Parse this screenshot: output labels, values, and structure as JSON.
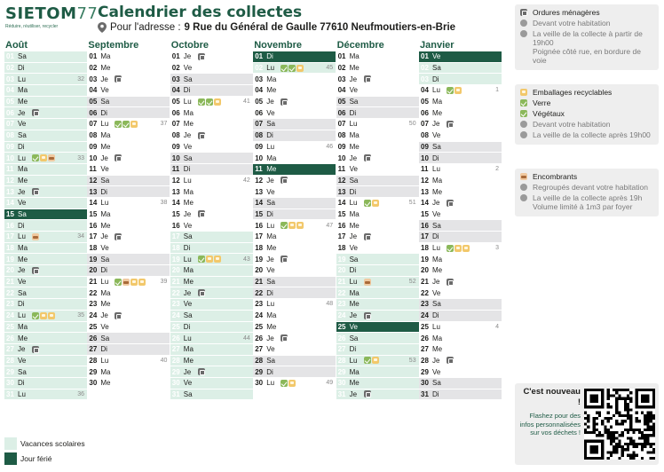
{
  "logo": {
    "main": "SIET",
    "o": "O",
    "m": "M",
    "num": "77",
    "tagline": "Réduire, réutiliser, recycler"
  },
  "header": {
    "title": "Calendrier des collectes",
    "address_prefix": "Pour l'adresse : ",
    "address": "9 Rue du Général de Gaulle 77610 Neufmoutiers-en-Brie"
  },
  "colors": {
    "brand": "#1e5b45",
    "vacation": "#dcefe6",
    "weekend": "#e4e4e6",
    "grey_bin": "#6b6b6b",
    "yellow_bin": "#f2c86b",
    "green_bin": "#8bb85a",
    "brown_bin": "#f0c9a0"
  },
  "months": [
    {
      "name": "Août",
      "days": [
        {
          "n": "01",
          "d": "Sa",
          "t": "vac"
        },
        {
          "n": "02",
          "d": "Di",
          "t": "vac"
        },
        {
          "n": "03",
          "d": "Lu",
          "t": "vac",
          "w": "32"
        },
        {
          "n": "04",
          "d": "Ma",
          "t": "vac"
        },
        {
          "n": "05",
          "d": "Me",
          "t": "vac"
        },
        {
          "n": "06",
          "d": "Je",
          "t": "vac",
          "ic": [
            "grey"
          ]
        },
        {
          "n": "07",
          "d": "Ve",
          "t": "vac"
        },
        {
          "n": "08",
          "d": "Sa",
          "t": "vac"
        },
        {
          "n": "09",
          "d": "Di",
          "t": "vac"
        },
        {
          "n": "10",
          "d": "Lu",
          "t": "vac",
          "ic": [
            "green",
            "yellow",
            "brown"
          ],
          "w": "33"
        },
        {
          "n": "11",
          "d": "Ma",
          "t": "vac"
        },
        {
          "n": "12",
          "d": "Me",
          "t": "vac"
        },
        {
          "n": "13",
          "d": "Je",
          "t": "vac",
          "ic": [
            "grey"
          ]
        },
        {
          "n": "14",
          "d": "Ve",
          "t": "vac"
        },
        {
          "n": "15",
          "d": "Sa",
          "t": "hol"
        },
        {
          "n": "16",
          "d": "Di",
          "t": "vac"
        },
        {
          "n": "17",
          "d": "Lu",
          "t": "vac",
          "ic": [
            "brown"
          ],
          "w": "34"
        },
        {
          "n": "18",
          "d": "Ma",
          "t": "vac"
        },
        {
          "n": "19",
          "d": "Me",
          "t": "vac"
        },
        {
          "n": "20",
          "d": "Je",
          "t": "vac",
          "ic": [
            "grey"
          ]
        },
        {
          "n": "21",
          "d": "Ve",
          "t": "vac"
        },
        {
          "n": "22",
          "d": "Sa",
          "t": "vac"
        },
        {
          "n": "23",
          "d": "Di",
          "t": "vac"
        },
        {
          "n": "24",
          "d": "Lu",
          "t": "vac",
          "ic": [
            "green",
            "yellow",
            "yellow"
          ],
          "w": "35"
        },
        {
          "n": "25",
          "d": "Ma",
          "t": "vac"
        },
        {
          "n": "26",
          "d": "Me",
          "t": "vac"
        },
        {
          "n": "27",
          "d": "Je",
          "t": "vac",
          "ic": [
            "grey"
          ]
        },
        {
          "n": "28",
          "d": "Ve",
          "t": "vac"
        },
        {
          "n": "29",
          "d": "Sa",
          "t": "vac"
        },
        {
          "n": "30",
          "d": "Di",
          "t": "vac"
        },
        {
          "n": "31",
          "d": "Lu",
          "t": "vac",
          "w": "36"
        }
      ]
    },
    {
      "name": "Septembre",
      "days": [
        {
          "n": "01",
          "d": "Ma"
        },
        {
          "n": "02",
          "d": "Me"
        },
        {
          "n": "03",
          "d": "Je",
          "ic": [
            "grey"
          ]
        },
        {
          "n": "04",
          "d": "Ve"
        },
        {
          "n": "05",
          "d": "Sa",
          "t": "we"
        },
        {
          "n": "06",
          "d": "Di",
          "t": "we"
        },
        {
          "n": "07",
          "d": "Lu",
          "ic": [
            "green",
            "green",
            "yellow"
          ],
          "w": "37"
        },
        {
          "n": "08",
          "d": "Ma"
        },
        {
          "n": "09",
          "d": "Me"
        },
        {
          "n": "10",
          "d": "Je",
          "ic": [
            "grey"
          ]
        },
        {
          "n": "11",
          "d": "Ve"
        },
        {
          "n": "12",
          "d": "Sa",
          "t": "we"
        },
        {
          "n": "13",
          "d": "Di",
          "t": "we"
        },
        {
          "n": "14",
          "d": "Lu",
          "w": "38"
        },
        {
          "n": "15",
          "d": "Ma"
        },
        {
          "n": "16",
          "d": "Me"
        },
        {
          "n": "17",
          "d": "Je",
          "ic": [
            "grey"
          ]
        },
        {
          "n": "18",
          "d": "Ve"
        },
        {
          "n": "19",
          "d": "Sa",
          "t": "we"
        },
        {
          "n": "20",
          "d": "Di",
          "t": "we"
        },
        {
          "n": "21",
          "d": "Lu",
          "ic": [
            "green",
            "brown",
            "yellow",
            "yellow"
          ],
          "w": "39"
        },
        {
          "n": "22",
          "d": "Ma"
        },
        {
          "n": "23",
          "d": "Me"
        },
        {
          "n": "24",
          "d": "Je",
          "ic": [
            "grey"
          ]
        },
        {
          "n": "25",
          "d": "Ve"
        },
        {
          "n": "26",
          "d": "Sa",
          "t": "we"
        },
        {
          "n": "27",
          "d": "Di",
          "t": "we"
        },
        {
          "n": "28",
          "d": "Lu",
          "w": "40"
        },
        {
          "n": "29",
          "d": "Ma"
        },
        {
          "n": "30",
          "d": "Me"
        }
      ]
    },
    {
      "name": "Octobre",
      "days": [
        {
          "n": "01",
          "d": "Je",
          "ic": [
            "grey"
          ]
        },
        {
          "n": "02",
          "d": "Ve"
        },
        {
          "n": "03",
          "d": "Sa",
          "t": "we"
        },
        {
          "n": "04",
          "d": "Di",
          "t": "we"
        },
        {
          "n": "05",
          "d": "Lu",
          "ic": [
            "green",
            "green",
            "yellow"
          ],
          "w": "41"
        },
        {
          "n": "06",
          "d": "Ma"
        },
        {
          "n": "07",
          "d": "Me"
        },
        {
          "n": "08",
          "d": "Je",
          "ic": [
            "grey"
          ]
        },
        {
          "n": "09",
          "d": "Ve"
        },
        {
          "n": "10",
          "d": "Sa",
          "t": "we"
        },
        {
          "n": "11",
          "d": "Di",
          "t": "we"
        },
        {
          "n": "12",
          "d": "Lu",
          "w": "42"
        },
        {
          "n": "13",
          "d": "Ma"
        },
        {
          "n": "14",
          "d": "Me"
        },
        {
          "n": "15",
          "d": "Je",
          "ic": [
            "grey"
          ]
        },
        {
          "n": "16",
          "d": "Ve"
        },
        {
          "n": "17",
          "d": "Sa",
          "t": "vac"
        },
        {
          "n": "18",
          "d": "Di",
          "t": "vac"
        },
        {
          "n": "19",
          "d": "Lu",
          "t": "vac",
          "ic": [
            "green",
            "yellow",
            "yellow"
          ],
          "w": "43"
        },
        {
          "n": "20",
          "d": "Ma",
          "t": "vac"
        },
        {
          "n": "21",
          "d": "Me",
          "t": "vac"
        },
        {
          "n": "22",
          "d": "Je",
          "t": "vac",
          "ic": [
            "grey"
          ]
        },
        {
          "n": "23",
          "d": "Ve",
          "t": "vac"
        },
        {
          "n": "24",
          "d": "Sa",
          "t": "vac"
        },
        {
          "n": "25",
          "d": "Di",
          "t": "vac"
        },
        {
          "n": "26",
          "d": "Lu",
          "t": "vac",
          "w": "44"
        },
        {
          "n": "27",
          "d": "Ma",
          "t": "vac"
        },
        {
          "n": "28",
          "d": "Me",
          "t": "vac"
        },
        {
          "n": "29",
          "d": "Je",
          "t": "vac",
          "ic": [
            "grey"
          ]
        },
        {
          "n": "30",
          "d": "Ve",
          "t": "vac"
        },
        {
          "n": "31",
          "d": "Sa",
          "t": "vac"
        }
      ]
    },
    {
      "name": "Novembre",
      "days": [
        {
          "n": "01",
          "d": "Di",
          "t": "hol"
        },
        {
          "n": "02",
          "d": "Lu",
          "t": "vac",
          "ic": [
            "green",
            "green",
            "yellow"
          ],
          "w": "45"
        },
        {
          "n": "03",
          "d": "Ma"
        },
        {
          "n": "04",
          "d": "Me"
        },
        {
          "n": "05",
          "d": "Je",
          "ic": [
            "grey"
          ]
        },
        {
          "n": "06",
          "d": "Ve"
        },
        {
          "n": "07",
          "d": "Sa",
          "t": "we"
        },
        {
          "n": "08",
          "d": "Di",
          "t": "we"
        },
        {
          "n": "09",
          "d": "Lu",
          "w": "46"
        },
        {
          "n": "10",
          "d": "Ma"
        },
        {
          "n": "11",
          "d": "Me",
          "t": "hol"
        },
        {
          "n": "12",
          "d": "Je",
          "ic": [
            "grey"
          ]
        },
        {
          "n": "13",
          "d": "Ve"
        },
        {
          "n": "14",
          "d": "Sa",
          "t": "we"
        },
        {
          "n": "15",
          "d": "Di",
          "t": "we"
        },
        {
          "n": "16",
          "d": "Lu",
          "ic": [
            "green",
            "yellow",
            "yellow"
          ],
          "w": "47"
        },
        {
          "n": "17",
          "d": "Ma"
        },
        {
          "n": "18",
          "d": "Me"
        },
        {
          "n": "19",
          "d": "Je",
          "ic": [
            "grey"
          ]
        },
        {
          "n": "20",
          "d": "Ve"
        },
        {
          "n": "21",
          "d": "Sa",
          "t": "we"
        },
        {
          "n": "22",
          "d": "Di",
          "t": "we"
        },
        {
          "n": "23",
          "d": "Lu",
          "w": "48"
        },
        {
          "n": "24",
          "d": "Ma"
        },
        {
          "n": "25",
          "d": "Me"
        },
        {
          "n": "26",
          "d": "Je",
          "ic": [
            "grey"
          ]
        },
        {
          "n": "27",
          "d": "Ve"
        },
        {
          "n": "28",
          "d": "Sa",
          "t": "we"
        },
        {
          "n": "29",
          "d": "Di",
          "t": "we"
        },
        {
          "n": "30",
          "d": "Lu",
          "ic": [
            "green",
            "yellow"
          ],
          "w": "49"
        }
      ]
    },
    {
      "name": "Décembre",
      "days": [
        {
          "n": "01",
          "d": "Ma"
        },
        {
          "n": "02",
          "d": "Me"
        },
        {
          "n": "03",
          "d": "Je",
          "ic": [
            "grey"
          ]
        },
        {
          "n": "04",
          "d": "Ve"
        },
        {
          "n": "05",
          "d": "Sa",
          "t": "we"
        },
        {
          "n": "06",
          "d": "Di",
          "t": "we"
        },
        {
          "n": "07",
          "d": "Lu",
          "w": "50"
        },
        {
          "n": "08",
          "d": "Ma"
        },
        {
          "n": "09",
          "d": "Me"
        },
        {
          "n": "10",
          "d": "Je",
          "ic": [
            "grey"
          ]
        },
        {
          "n": "11",
          "d": "Ve"
        },
        {
          "n": "12",
          "d": "Sa",
          "t": "we"
        },
        {
          "n": "13",
          "d": "Di",
          "t": "we"
        },
        {
          "n": "14",
          "d": "Lu",
          "ic": [
            "green",
            "yellow"
          ],
          "w": "51"
        },
        {
          "n": "15",
          "d": "Ma"
        },
        {
          "n": "16",
          "d": "Me"
        },
        {
          "n": "17",
          "d": "Je",
          "ic": [
            "grey"
          ]
        },
        {
          "n": "18",
          "d": "Ve"
        },
        {
          "n": "19",
          "d": "Sa",
          "t": "vac"
        },
        {
          "n": "20",
          "d": "Di",
          "t": "vac"
        },
        {
          "n": "21",
          "d": "Lu",
          "t": "vac",
          "ic": [
            "brown"
          ],
          "w": "52"
        },
        {
          "n": "22",
          "d": "Ma",
          "t": "vac"
        },
        {
          "n": "23",
          "d": "Me",
          "t": "vac"
        },
        {
          "n": "24",
          "d": "Je",
          "t": "vac",
          "ic": [
            "grey"
          ]
        },
        {
          "n": "25",
          "d": "Ve",
          "t": "hol"
        },
        {
          "n": "26",
          "d": "Sa",
          "t": "vac"
        },
        {
          "n": "27",
          "d": "Di",
          "t": "vac"
        },
        {
          "n": "28",
          "d": "Lu",
          "t": "vac",
          "ic": [
            "green",
            "yellow"
          ],
          "w": "53"
        },
        {
          "n": "29",
          "d": "Ma",
          "t": "vac"
        },
        {
          "n": "30",
          "d": "Me",
          "t": "vac"
        },
        {
          "n": "31",
          "d": "Je",
          "t": "vac",
          "ic": [
            "grey"
          ]
        }
      ]
    },
    {
      "name": "Janvier",
      "days": [
        {
          "n": "01",
          "d": "Ve",
          "t": "hol"
        },
        {
          "n": "02",
          "d": "Sa",
          "t": "vac"
        },
        {
          "n": "03",
          "d": "Di",
          "t": "vac"
        },
        {
          "n": "04",
          "d": "Lu",
          "ic": [
            "green",
            "yellow"
          ],
          "w": "1"
        },
        {
          "n": "05",
          "d": "Ma"
        },
        {
          "n": "06",
          "d": "Me"
        },
        {
          "n": "07",
          "d": "Je",
          "ic": [
            "grey"
          ]
        },
        {
          "n": "08",
          "d": "Ve"
        },
        {
          "n": "09",
          "d": "Sa",
          "t": "we"
        },
        {
          "n": "10",
          "d": "Di",
          "t": "we"
        },
        {
          "n": "11",
          "d": "Lu",
          "w": "2"
        },
        {
          "n": "12",
          "d": "Ma"
        },
        {
          "n": "13",
          "d": "Me"
        },
        {
          "n": "14",
          "d": "Je",
          "ic": [
            "grey"
          ]
        },
        {
          "n": "15",
          "d": "Ve"
        },
        {
          "n": "16",
          "d": "Sa",
          "t": "we"
        },
        {
          "n": "17",
          "d": "Di",
          "t": "we"
        },
        {
          "n": "18",
          "d": "Lu",
          "ic": [
            "green",
            "yellow",
            "yellow"
          ],
          "w": "3"
        },
        {
          "n": "19",
          "d": "Ma"
        },
        {
          "n": "20",
          "d": "Me"
        },
        {
          "n": "21",
          "d": "Je",
          "ic": [
            "grey"
          ]
        },
        {
          "n": "22",
          "d": "Ve"
        },
        {
          "n": "23",
          "d": "Sa",
          "t": "we"
        },
        {
          "n": "24",
          "d": "Di",
          "t": "we"
        },
        {
          "n": "25",
          "d": "Lu",
          "w": "4"
        },
        {
          "n": "26",
          "d": "Ma"
        },
        {
          "n": "27",
          "d": "Me"
        },
        {
          "n": "28",
          "d": "Je",
          "ic": [
            "grey"
          ]
        },
        {
          "n": "29",
          "d": "Ve"
        },
        {
          "n": "30",
          "d": "Sa",
          "t": "we"
        },
        {
          "n": "31",
          "d": "Di",
          "t": "we"
        }
      ]
    }
  ],
  "info": {
    "om": {
      "title": "Ordures ménagères",
      "place": "Devant votre habitation",
      "time": "La veille de la collecte à partir de 19h00",
      "note": "Poignée côté rue, en bordure de voie"
    },
    "recy": {
      "title": "Emballages recyclables",
      "verre": "Verre",
      "vegetaux": "Végétaux",
      "place": "Devant votre habitation",
      "time": "La veille de la collecte après 19h00"
    },
    "enc": {
      "title": "Encombrants",
      "place": "Regroupés devant votre habitation",
      "time": "La veille de la collecte après 19h",
      "note": "Volume limité à 1m3 par foyer"
    }
  },
  "promo": {
    "title": "C'est nouveau !",
    "text": "Flashez pour des infos personnalisées sur vos déchets !"
  },
  "legend": {
    "vacation": "Vacances scolaires",
    "holiday": "Jour férié"
  }
}
